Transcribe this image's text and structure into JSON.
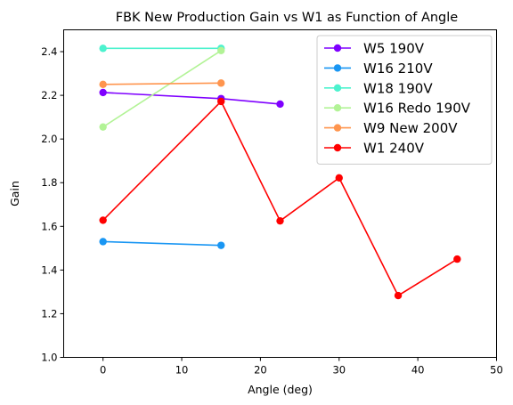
{
  "chart_data": {
    "type": "line",
    "title": "FBK New Production Gain vs W1 as Function of Angle",
    "xlabel": "Angle (deg)",
    "ylabel": "Gain",
    "xlim": [
      -5,
      50
    ],
    "ylim": [
      1.0,
      2.5
    ],
    "xticks": [
      0,
      10,
      20,
      30,
      40,
      50
    ],
    "yticks": [
      1.0,
      1.2,
      1.4,
      1.6,
      1.8,
      2.0,
      2.2,
      2.4
    ],
    "xtick_labels": [
      "0",
      "10",
      "20",
      "30",
      "40",
      "50"
    ],
    "ytick_labels": [
      "1.0",
      "1.2",
      "1.4",
      "1.6",
      "1.8",
      "2.0",
      "2.2",
      "2.4"
    ],
    "grid": false,
    "legend_position": "top-right",
    "series": [
      {
        "name": "W5 190V",
        "color": "#7f00ff",
        "x": [
          0,
          15,
          22.5
        ],
        "y": [
          2.213,
          2.185,
          2.16
        ]
      },
      {
        "name": "W16 210V",
        "color": "#1996f3",
        "x": [
          0,
          15
        ],
        "y": [
          1.53,
          1.513
        ]
      },
      {
        "name": "W18 190V",
        "color": "#4cf2ce",
        "x": [
          0,
          15
        ],
        "y": [
          2.415,
          2.415
        ]
      },
      {
        "name": "W16 Redo 190V",
        "color": "#b2f396",
        "x": [
          0,
          15
        ],
        "y": [
          2.055,
          2.405
        ]
      },
      {
        "name": "W9 New 200V",
        "color": "#ff954e",
        "x": [
          0,
          15
        ],
        "y": [
          2.25,
          2.256
        ]
      },
      {
        "name": "W1 240V",
        "color": "#ff0000",
        "x": [
          0,
          15,
          22.5,
          30,
          37.5,
          45
        ],
        "y": [
          1.628,
          2.172,
          1.625,
          1.822,
          1.283,
          1.45
        ]
      }
    ]
  }
}
